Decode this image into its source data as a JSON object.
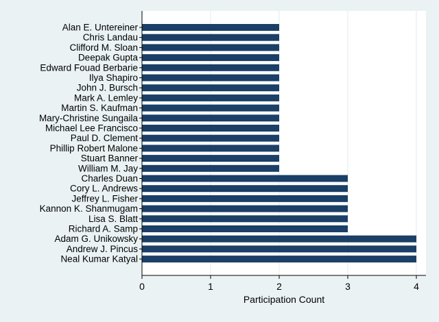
{
  "chart_data": {
    "type": "bar",
    "orientation": "horizontal",
    "title": "",
    "xlabel": "Participation Count",
    "ylabel": "",
    "xlim": [
      0,
      4
    ],
    "xticks": [
      0,
      1,
      2,
      3,
      4
    ],
    "grid": "vertical",
    "legend": "none",
    "categories": [
      "Alan E. Untereiner",
      "Chris Landau",
      "Clifford M. Sloan",
      "Deepak Gupta",
      "Edward Fouad Berbarie",
      "Ilya Shapiro",
      "John J. Bursch",
      "Mark A. Lemley",
      "Martin S. Kaufman",
      "Mary-Christine Sungaila",
      "Michael Lee Francisco",
      "Paul D. Clement",
      "Phillip Robert Malone",
      "Stuart Banner",
      "William M. Jay",
      "Charles Duan",
      "Cory L. Andrews",
      "Jeffrey L. Fisher",
      "Kannon K. Shanmugam",
      "Lisa S. Blatt",
      "Richard A. Samp",
      "Adam G. Unikowsky",
      "Andrew J. Pincus",
      "Neal Kumar Katyal"
    ],
    "values": [
      2,
      2,
      2,
      2,
      2,
      2,
      2,
      2,
      2,
      2,
      2,
      2,
      2,
      2,
      2,
      3,
      3,
      3,
      3,
      3,
      3,
      4,
      4,
      4
    ]
  },
  "colors": {
    "outer_background": "#eaf2f3",
    "plot_background": "#ffffff",
    "bar": "#1b3f66",
    "grid": "#e2ebef",
    "axis": "#000000",
    "text": "#000000"
  }
}
